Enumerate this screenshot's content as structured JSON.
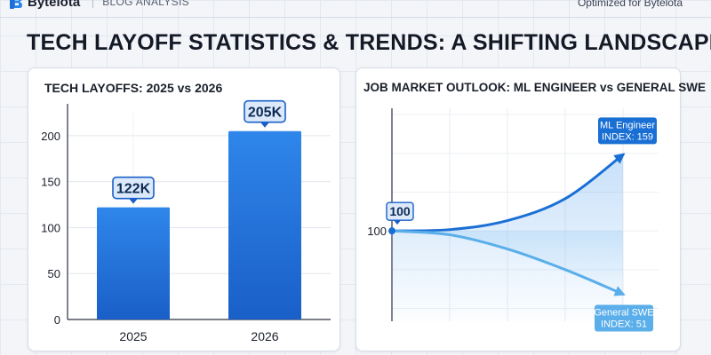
{
  "header": {
    "brand": "Bytelota",
    "tag": "BLOG ANALYSIS",
    "right_text": "Optimized for Bytelota"
  },
  "title": "TECH LAYOFF STATISTICS & TRENDS: A SHIFTING LANDSCAPE",
  "colors": {
    "bar": "#2a7de1",
    "bar_dark": "#1560c9",
    "ml_line": "#1a6fd4",
    "swe_line": "#5aaeea"
  },
  "icons": {
    "brand_logo": "bytelota-logo-icon"
  },
  "chart_data": [
    {
      "type": "bar",
      "title": "TECH LAYOFFS: 2025 vs 2026",
      "categories": [
        "2025",
        "2026"
      ],
      "values": [
        122,
        205
      ],
      "data_labels": [
        "122K",
        "205K"
      ],
      "yticks": [
        0,
        50,
        100,
        150,
        200
      ],
      "ylim": [
        0,
        225
      ],
      "grid": true
    },
    {
      "type": "line",
      "title": "JOB MARKET OUTLOOK: ML ENGINEER vs GENERAL SWE",
      "ytick_labels": [
        "100"
      ],
      "start_label": "100",
      "x": [
        0,
        1,
        2,
        3,
        4
      ],
      "series": [
        {
          "name": "ML Engineer",
          "label_line1": "ML Engineer",
          "label_line2": "INDEX: 159",
          "values": [
            100,
            101,
            108,
            125,
            159
          ]
        },
        {
          "name": "General SWE",
          "label_line1": "General SWE",
          "label_line2": "INDEX: 51",
          "values": [
            100,
            97,
            86,
            70,
            51
          ]
        }
      ],
      "ylim": [
        30,
        195
      ],
      "grid": true
    }
  ]
}
